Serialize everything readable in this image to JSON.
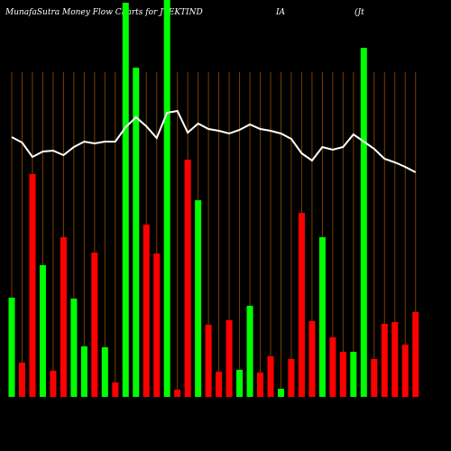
{
  "chart_data": {
    "type": "bar",
    "title": "MunafaSutra  Money Flow  Charts for JTEKTIND",
    "title_parts": [
      "IA",
      "(Jt"
    ],
    "ylim": [
      0,
      440
    ],
    "values": [
      110,
      38,
      247,
      146,
      29,
      177,
      109,
      56,
      160,
      55,
      16,
      437,
      365,
      191,
      159,
      440,
      8,
      263,
      218,
      80,
      28,
      85,
      30,
      101,
      27,
      45,
      9,
      42,
      204,
      84,
      177,
      66,
      50,
      50,
      387,
      42,
      81,
      83,
      58,
      94
    ],
    "colors": [
      "#00ff00",
      "#ff0000",
      "#ff0000",
      "#00ff00",
      "#ff0000",
      "#ff0000",
      "#00ff00",
      "#00ff00",
      "#ff0000",
      "#00ff00",
      "#ff0000",
      "#00ff00",
      "#00ff00",
      "#ff0000",
      "#ff0000",
      "#00ff00",
      "#ff0000",
      "#ff0000",
      "#00ff00",
      "#ff0000",
      "#ff0000",
      "#ff0000",
      "#00ff00",
      "#00ff00",
      "#ff0000",
      "#ff0000",
      "#00ff00",
      "#ff0000",
      "#ff0000",
      "#ff0000",
      "#00ff00",
      "#ff0000",
      "#ff0000",
      "#00ff00",
      "#00ff00",
      "#ff0000",
      "#ff0000",
      "#ff0000",
      "#ff0000",
      "#ff0000"
    ],
    "line": {
      "color": "#ffffff",
      "values": [
        288,
        282,
        266,
        272,
        273,
        268,
        277,
        283,
        281,
        283,
        283,
        299,
        310,
        300,
        287,
        315,
        317,
        293,
        303,
        297,
        295,
        292,
        296,
        302,
        297,
        295,
        292,
        286,
        270,
        262,
        277,
        274,
        277,
        291,
        283,
        275,
        264,
        260,
        255,
        249
      ]
    },
    "separator_color": "#7a3e00"
  }
}
